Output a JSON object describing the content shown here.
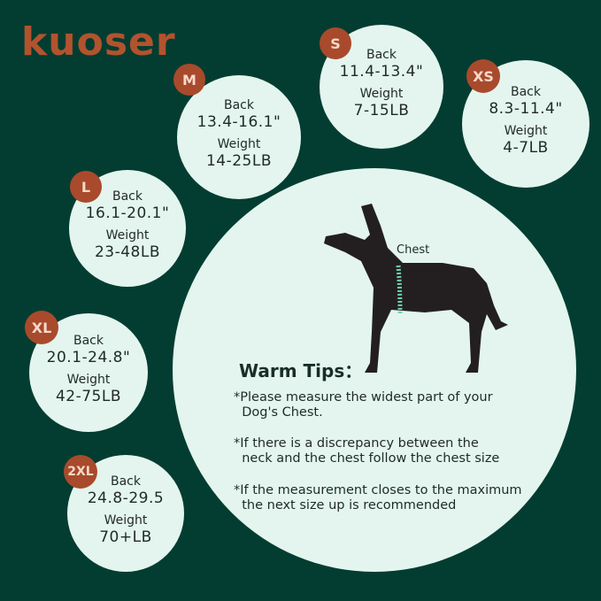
{
  "brand": {
    "logo_text": "kuoser",
    "color": "#b2532e"
  },
  "colors": {
    "background": "#033d31",
    "circle": "#e3f5ee",
    "badge": "#a94a2c"
  },
  "labels": {
    "back": "Back",
    "weight": "Weight"
  },
  "sizes": [
    {
      "size": "M",
      "back": "13.4-16.1\"",
      "weight": "14-25LB"
    },
    {
      "size": "S",
      "back": "11.4-13.4\"",
      "weight": "7-15LB"
    },
    {
      "size": "XS",
      "back": "8.3-11.4\"",
      "weight": "4-7LB"
    },
    {
      "size": "L",
      "back": "16.1-20.1\"",
      "weight": "23-48LB"
    },
    {
      "size": "XL",
      "back": "20.1-24.8\"",
      "weight": "42-75LB"
    },
    {
      "size": "2XL",
      "back": "24.8-29.5",
      "weight": "70+LB"
    }
  ],
  "diagram": {
    "chest_label": "Chest"
  },
  "tips": {
    "title": "Warm Tips：",
    "items": [
      "*Please measure the widest part of your\n  Dog's Chest.",
      "*If there is a discrepancy between the\n  neck and the chest follow the chest size",
      "*If the measurement closes to the maximum\n  the next size up is recommended"
    ]
  }
}
